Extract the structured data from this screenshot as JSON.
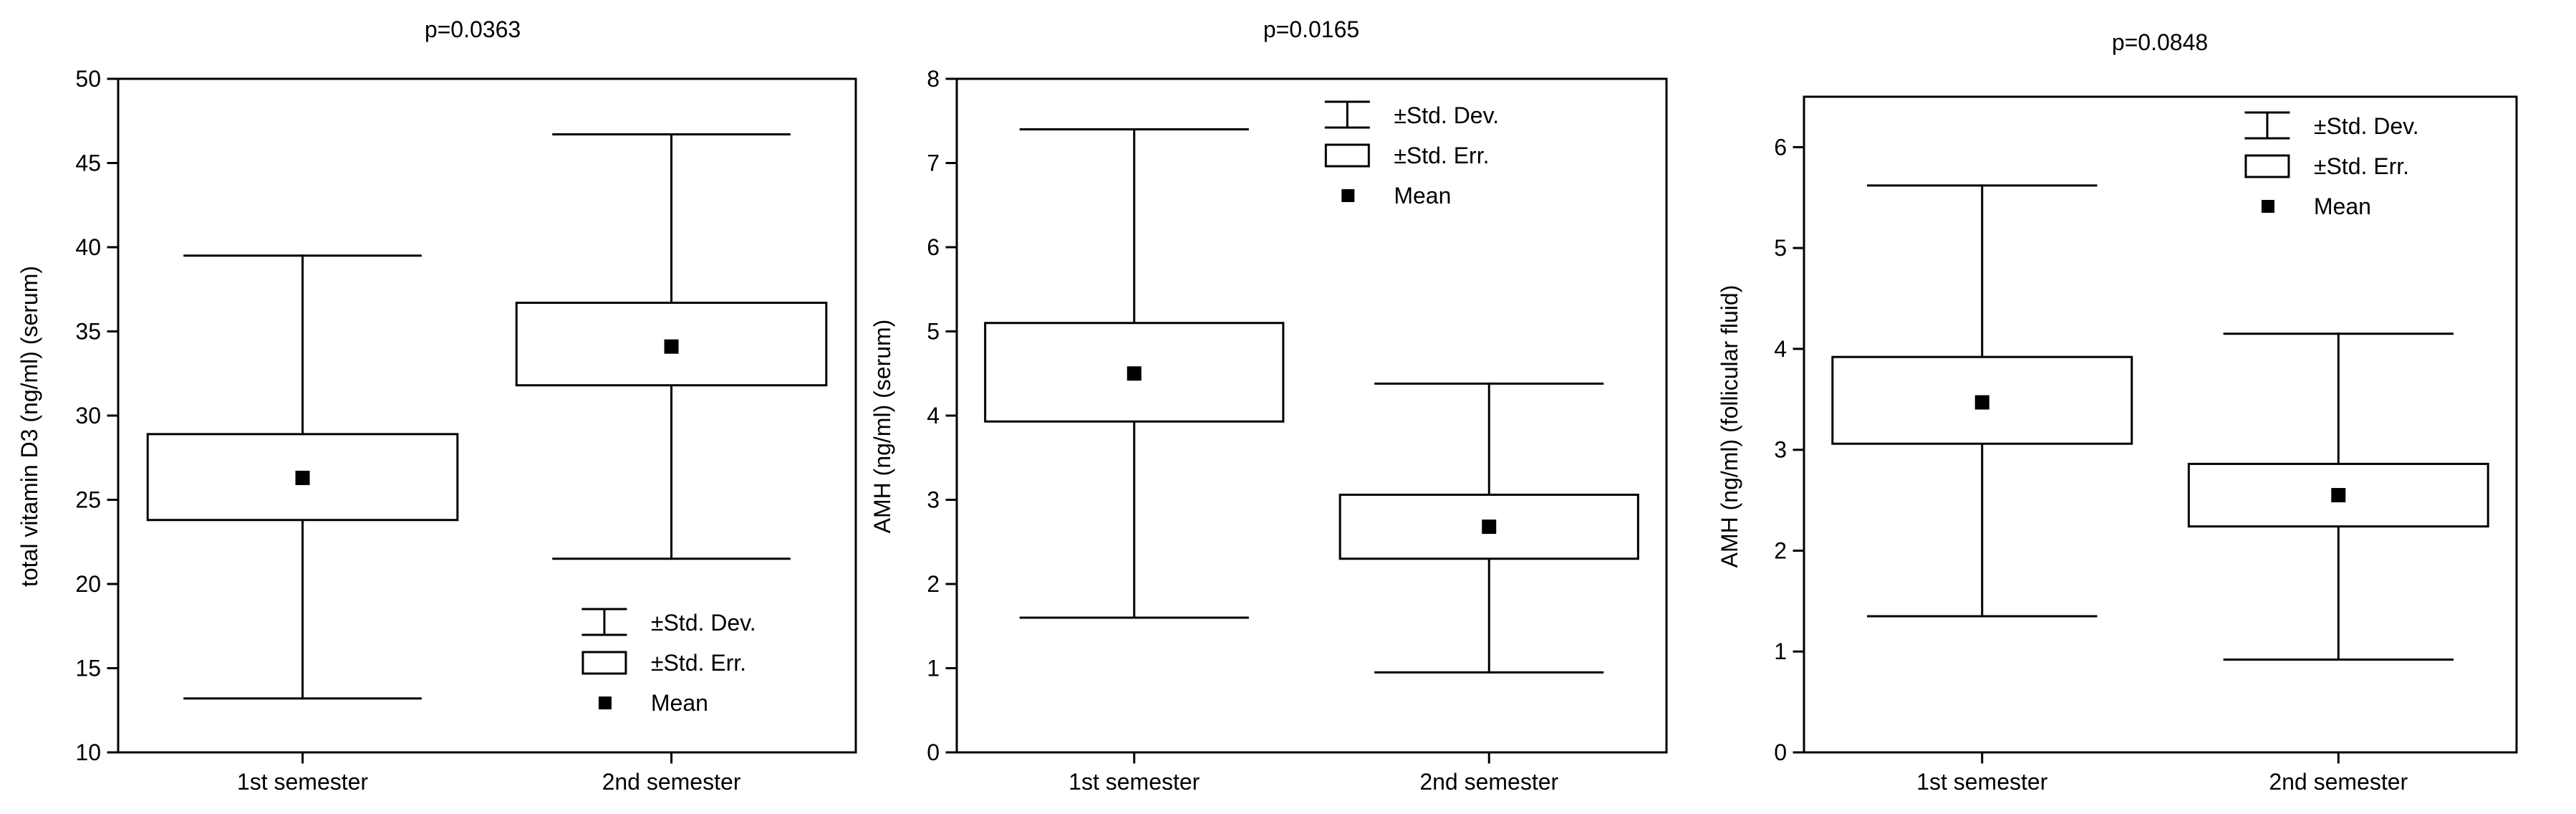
{
  "figure": {
    "panels": [
      {
        "title": "p=0.0363",
        "ylabel": "total vitamin D3 (ng/ml) (serum)"
      },
      {
        "title": "p=0.0165",
        "ylabel": "AMH (ng/ml) (serum)"
      },
      {
        "title": "p=0.0848",
        "ylabel": "AMH (ng/ml) (follicular fluid)"
      }
    ]
  },
  "chart_data": [
    {
      "type": "box",
      "title": "p=0.0363",
      "xlabel": "",
      "ylabel": "total vitamin D3 (ng/ml) (serum)",
      "ylim": [
        10,
        50
      ],
      "yticks": [
        10,
        15,
        20,
        25,
        30,
        35,
        40,
        45,
        50
      ],
      "categories": [
        "1st semester",
        "2nd semester"
      ],
      "groups": [
        {
          "name": "1st semester",
          "mean": 26.3,
          "se_low": 23.8,
          "se_high": 28.9,
          "sd_low": 13.2,
          "sd_high": 39.5
        },
        {
          "name": "2nd semester",
          "mean": 34.1,
          "se_low": 31.8,
          "se_high": 36.7,
          "sd_low": 21.5,
          "sd_high": 46.7
        }
      ],
      "legend": {
        "position": "bottom-right",
        "entries": [
          "±Std. Dev.",
          "±Std. Err.",
          "Mean"
        ]
      }
    },
    {
      "type": "box",
      "title": "p=0.0165",
      "xlabel": "",
      "ylabel": "AMH (ng/ml) (serum)",
      "ylim": [
        0,
        8
      ],
      "yticks": [
        0,
        1,
        2,
        3,
        4,
        5,
        6,
        7,
        8
      ],
      "categories": [
        "1st semester",
        "2nd semester"
      ],
      "groups": [
        {
          "name": "1st semester",
          "mean": 4.5,
          "se_low": 3.93,
          "se_high": 5.1,
          "sd_low": 1.6,
          "sd_high": 7.4
        },
        {
          "name": "2nd semester",
          "mean": 2.68,
          "se_low": 2.3,
          "se_high": 3.06,
          "sd_low": 0.95,
          "sd_high": 4.38
        }
      ],
      "legend": {
        "position": "top-right",
        "entries": [
          "±Std. Dev.",
          "±Std. Err.",
          "Mean"
        ]
      }
    },
    {
      "type": "box",
      "title": "p=0.0848",
      "xlabel": "",
      "ylabel": "AMH (ng/ml) (follicular fluid)",
      "ylim": [
        0,
        6.5
      ],
      "yticks": [
        0,
        1,
        2,
        3,
        4,
        5,
        6
      ],
      "categories": [
        "1st semester",
        "2nd semester"
      ],
      "groups": [
        {
          "name": "1st semester",
          "mean": 3.47,
          "se_low": 3.06,
          "se_high": 3.92,
          "sd_low": 1.35,
          "sd_high": 5.62
        },
        {
          "name": "2nd semester",
          "mean": 2.55,
          "se_low": 2.24,
          "se_high": 2.86,
          "sd_low": 0.92,
          "sd_high": 4.15
        }
      ],
      "legend": {
        "position": "top-right",
        "entries": [
          "±Std. Dev.",
          "±Std. Err.",
          "Mean"
        ]
      }
    }
  ]
}
